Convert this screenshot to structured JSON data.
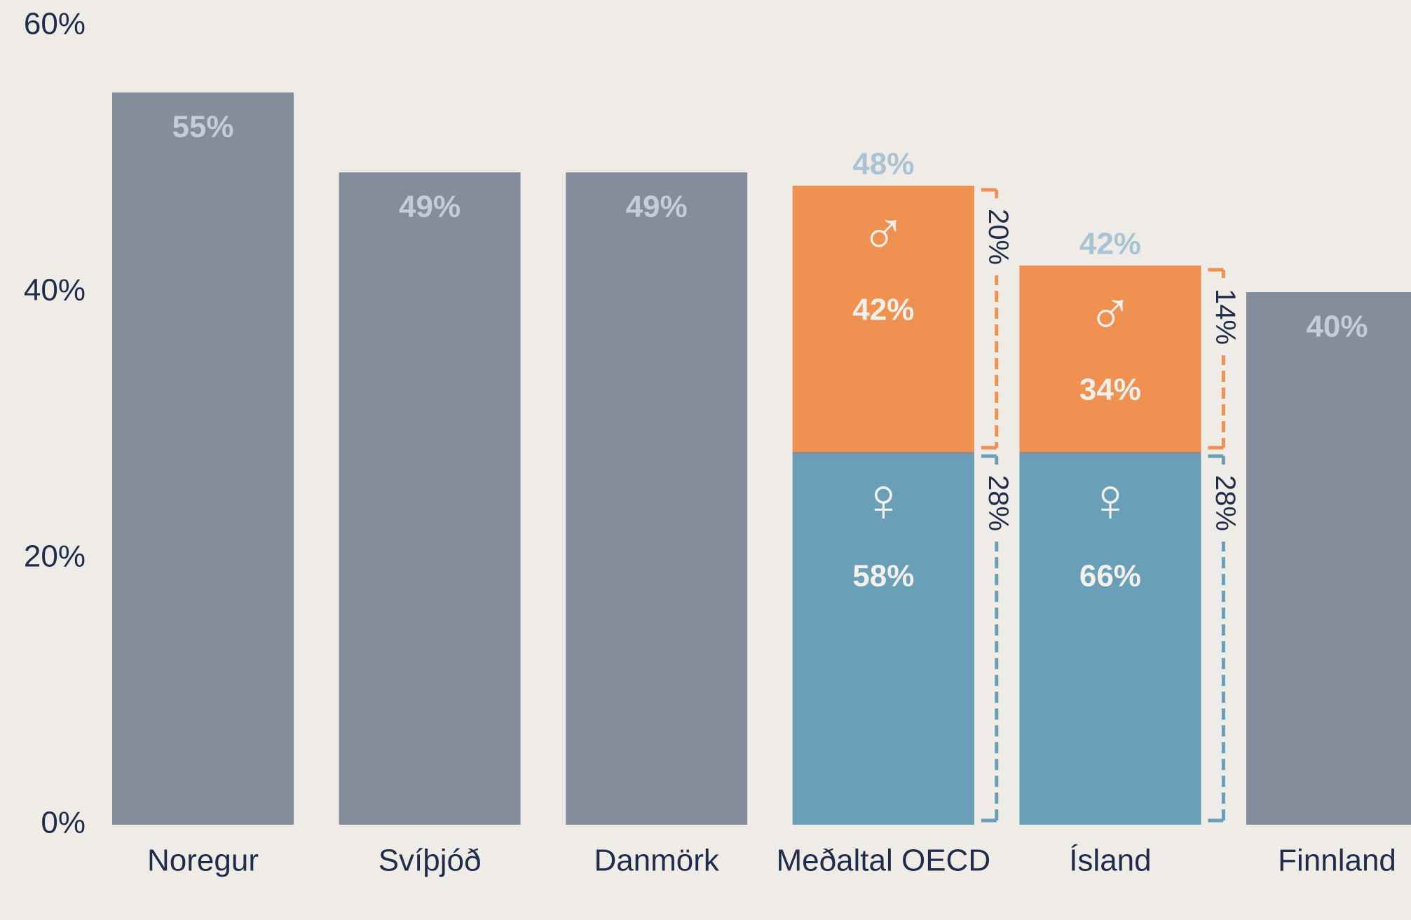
{
  "chart_data": {
    "type": "bar",
    "categories": [
      "Noregur",
      "Svíþjóð",
      "Danmörk",
      "Meðaltal OECD",
      "Ísland",
      "Finnland"
    ],
    "values": [
      55,
      49,
      49,
      48,
      42,
      40
    ],
    "value_labels": [
      "55%",
      "49%",
      "49%",
      "48%",
      "42%",
      "40%"
    ],
    "color": "#848d9c",
    "series": [
      {
        "name": "♀",
        "color": "#6a9fb8",
        "values": [
          null,
          null,
          null,
          28,
          28,
          null
        ],
        "value_labels": [
          null,
          null,
          null,
          "28%",
          "28%",
          null
        ],
        "shares": [
          null,
          null,
          null,
          58,
          66,
          null
        ],
        "share_labels": [
          null,
          null,
          null,
          "58%",
          "66%",
          null
        ]
      },
      {
        "name": "♂",
        "color": "#ef9150",
        "values": [
          null,
          null,
          null,
          20,
          14,
          null
        ],
        "value_labels": [
          null,
          null,
          null,
          "20%",
          "14%",
          null
        ],
        "shares": [
          null,
          null,
          null,
          42,
          34,
          null
        ],
        "share_labels": [
          null,
          null,
          null,
          "42%",
          "34%",
          null
        ]
      }
    ],
    "ylim": [
      0,
      60
    ],
    "yticks": [
      {
        "value": 0,
        "label": "0%"
      },
      {
        "value": 20,
        "label": "20%"
      },
      {
        "value": 40,
        "label": "40%"
      },
      {
        "value": 60,
        "label": "60%"
      }
    ],
    "grid": false
  }
}
